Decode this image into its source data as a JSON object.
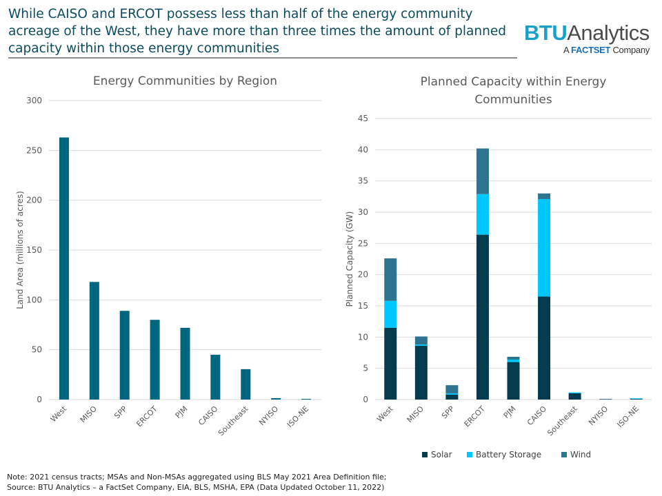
{
  "headline": "While CAISO and ERCOT possess less than half of the energy community acreage of the West, they have more than three times the amount of planned capacity within those energy communities",
  "logo": {
    "brand": "BTU",
    "brand2": "Analytics",
    "tagline_pre": "A ",
    "tagline_factset": "FACTSET",
    "tagline_post": " Company"
  },
  "notes": {
    "line1": "Note:  2021 census tracts; MSAs and Non-MSAs aggregated using BLS May 2021 Area Definition file;",
    "line2": "Source: BTU Analytics – a FactSet Company, EIA, BLS, MSHA, EPA (Data Updated October 11, 2022)"
  },
  "chart_data": [
    {
      "type": "bar",
      "title": "Energy Communities by Region",
      "xlabel": "",
      "ylabel": "Land Area (millions of acres)",
      "ylim": [
        0,
        300
      ],
      "yticks": [
        0,
        50,
        100,
        150,
        200,
        250,
        300
      ],
      "grid": true,
      "color": "#00657f",
      "categories": [
        "West",
        "MISO",
        "SPP",
        "ERCOT",
        "PJM",
        "CAISO",
        "Southeast",
        "NYISO",
        "ISO-NE"
      ],
      "values": [
        263,
        118,
        89,
        80,
        72,
        45,
        30.5,
        1.4,
        0.7
      ]
    },
    {
      "type": "bar",
      "stacked": true,
      "title": "Planned Capacity within Energy Communities",
      "title_lines": [
        "Planned Capacity within Energy",
        "Communities"
      ],
      "xlabel": "",
      "ylabel": "Planned Capacity (GW)",
      "ylim": [
        0,
        45
      ],
      "yticks": [
        0,
        5,
        10,
        15,
        20,
        25,
        30,
        35,
        40,
        45
      ],
      "grid": true,
      "legend": "bottom",
      "categories": [
        "West",
        "MISO",
        "SPP",
        "ERCOT",
        "PJM",
        "CAISO",
        "Southeast",
        "NYISO",
        "ISO-NE"
      ],
      "series": [
        {
          "name": "Solar",
          "color": "#043c4e",
          "values": [
            11.5,
            8.6,
            0.8,
            26.4,
            6.0,
            16.5,
            1.0,
            0.05,
            0.1
          ]
        },
        {
          "name": "Battery Storage",
          "color": "#00c8ff",
          "values": [
            4.3,
            0.2,
            0.2,
            6.5,
            0.4,
            15.6,
            0.15,
            0,
            0.1
          ]
        },
        {
          "name": "Wind",
          "color": "#2e748f",
          "values": [
            6.8,
            1.3,
            1.3,
            7.3,
            0.45,
            0.9,
            0,
            0.05,
            0
          ]
        }
      ]
    }
  ]
}
